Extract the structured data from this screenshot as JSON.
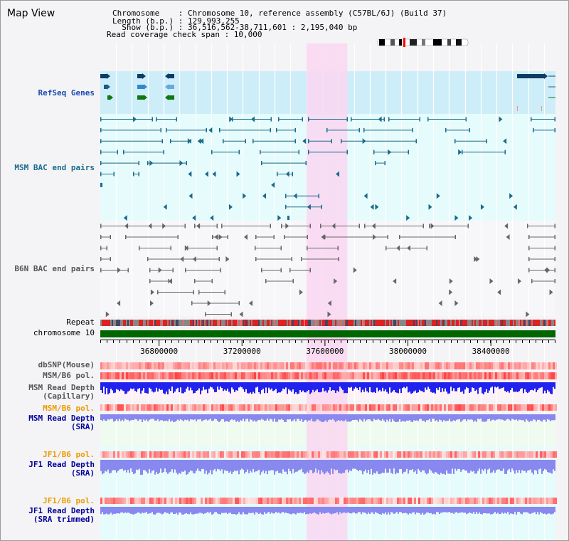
{
  "title": "Map View",
  "info": {
    "chromosome_line": "Chromosome    : Chromosome 10, reference assembly (C57BL/6J) (Build 37)",
    "length_line": "Length (b.p.) : 129,993,255",
    "show_line": "  Show (b.p.) : 36,516,562-38,711,601 : 2,195,040 bp",
    "coverage_line": "Read coverage check span : 10,000"
  },
  "tracks": {
    "refseq": "RefSeq Genes",
    "msm_bac": "MSM BAC end pairs",
    "b6n_bac": "B6N BAC end pairs",
    "repeat": "Repeat",
    "chromosome": "chromosome 10",
    "dbsnp": "dbSNP(Mouse)",
    "msm_b6_pol_1": "MSM/B6 pol.",
    "msm_depth_cap_1": "MSM Read Depth",
    "msm_depth_cap_2": "(Capillary)",
    "msm_b6_pol_2": "MSM/B6 pol.",
    "msm_depth_sra_1": "MSM Read Depth",
    "msm_depth_sra_2": "(SRA)",
    "jf1_b6_pol_1": "JF1/B6 pol.",
    "jf1_depth_sra_1": "JF1 Read Depth",
    "jf1_depth_sra_2": "(SRA)",
    "jf1_b6_pol_2": "JF1/B6 pol.",
    "jf1_depth_trim_1": "JF1 Read Depth",
    "jf1_depth_trim_2": "(SRA trimmed)"
  },
  "ruler": {
    "ticks": [
      "36800000",
      "37200000",
      "37600000",
      "38000000",
      "38400000"
    ],
    "tick_values": [
      36800000,
      37200000,
      37600000,
      38000000,
      38400000
    ],
    "view_start": 36516562,
    "view_end": 38711601
  },
  "highlight": {
    "start": 37511000,
    "end": 37708000
  },
  "colors": {
    "refseq_bg": "#cdeef8",
    "bac_bg": "#e6fbfb",
    "highlight": "#f9d8f1",
    "chromosome": "#006600",
    "msm_label": "#1a6a8c",
    "blue_label": "#000099",
    "orange_label": "#ee9900",
    "gray_label": "#555555",
    "depth_fill": "#2222ee",
    "sra_fill": "#8888ee"
  }
}
